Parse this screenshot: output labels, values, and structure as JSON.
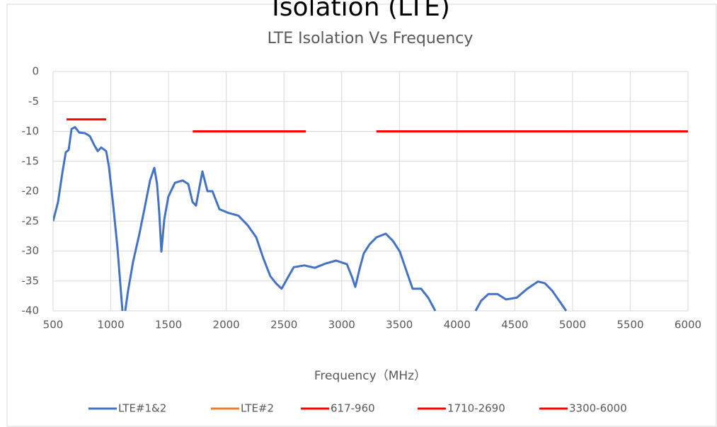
{
  "header_title": "Isolation (LTE)",
  "chart_data": {
    "type": "line",
    "title": "LTE Isolation Vs Frequency",
    "xlabel": "Frequency（MHz）",
    "xlim": [
      500,
      6000
    ],
    "xticks": [
      500,
      1000,
      1500,
      2000,
      2500,
      3000,
      3500,
      4000,
      4500,
      5000,
      5500,
      6000
    ],
    "ylim": [
      -40,
      0
    ],
    "yticks": [
      0,
      -5,
      -10,
      -15,
      -20,
      -25,
      -30,
      -35,
      -40
    ],
    "grid": true,
    "legend": "bottom",
    "series": [
      {
        "name": "LTE#1&2",
        "color": "#4472c4",
        "x": [
          500,
          543,
          580,
          610,
          635,
          660,
          690,
          727,
          776,
          819,
          856,
          886,
          917,
          960,
          984,
          1021,
          1058,
          1082,
          1101,
          1113,
          1125,
          1150,
          1193,
          1248,
          1297,
          1340,
          1377,
          1401,
          1420,
          1438,
          1463,
          1499,
          1555,
          1622,
          1671,
          1708,
          1738,
          1794,
          1837,
          1880,
          1941,
          2014,
          2106,
          2186,
          2260,
          2321,
          2382,
          2431,
          2480,
          2523,
          2585,
          2677,
          2768,
          2860,
          2952,
          3045,
          3087,
          3118,
          3155,
          3191,
          3241,
          3302,
          3382,
          3443,
          3504,
          3566,
          3615,
          3688,
          3750,
          3811,
          4000,
          4160,
          4209,
          4271,
          4350,
          4424,
          4516,
          4608,
          4700,
          4761,
          4822,
          4884,
          4945
        ],
        "values": [
          -25,
          -21.8,
          -17,
          -13.5,
          -13.1,
          -9.6,
          -9.3,
          -10.2,
          -10.3,
          -10.8,
          -12.3,
          -13.3,
          -12.7,
          -13.3,
          -15.9,
          -22.4,
          -29.5,
          -35.4,
          -40,
          null,
          -40,
          -36.6,
          -31.8,
          -27.1,
          -22.4,
          -18.2,
          -16.1,
          -18.8,
          -23.6,
          -30.1,
          -24.7,
          -20.9,
          -18.6,
          -18.2,
          -18.8,
          -21.8,
          -22.4,
          -16.7,
          -20,
          -20,
          -23,
          -23.6,
          -24.1,
          -25.7,
          -27.7,
          -31.2,
          -34.2,
          -35.4,
          -36.3,
          -34.8,
          -32.7,
          -32.4,
          -32.8,
          -32.1,
          -31.6,
          -32.2,
          -34.2,
          -36,
          -33,
          -30.4,
          -28.9,
          -27.7,
          -27.1,
          -28.3,
          -30.1,
          -33.6,
          -36.3,
          -36.3,
          -37.8,
          -40,
          null,
          -40,
          -38.3,
          -37.2,
          -37.2,
          -38.1,
          -37.8,
          -36.3,
          -35.1,
          -35.4,
          -36.6,
          -38.3,
          -40
        ]
      },
      {
        "name": "LTE#2",
        "color": "#ed7d31",
        "x": [],
        "values": []
      },
      {
        "name": "617-960",
        "color": "#ff0000",
        "x": [
          617,
          960
        ],
        "values": [
          -8,
          -8
        ]
      },
      {
        "name": "1710-2690",
        "color": "#ff0000",
        "x": [
          1710,
          2690
        ],
        "values": [
          -10,
          -10
        ]
      },
      {
        "name": "3300-6000",
        "color": "#ff0000",
        "x": [
          3300,
          6000
        ],
        "values": [
          -10,
          -10
        ]
      }
    ]
  }
}
